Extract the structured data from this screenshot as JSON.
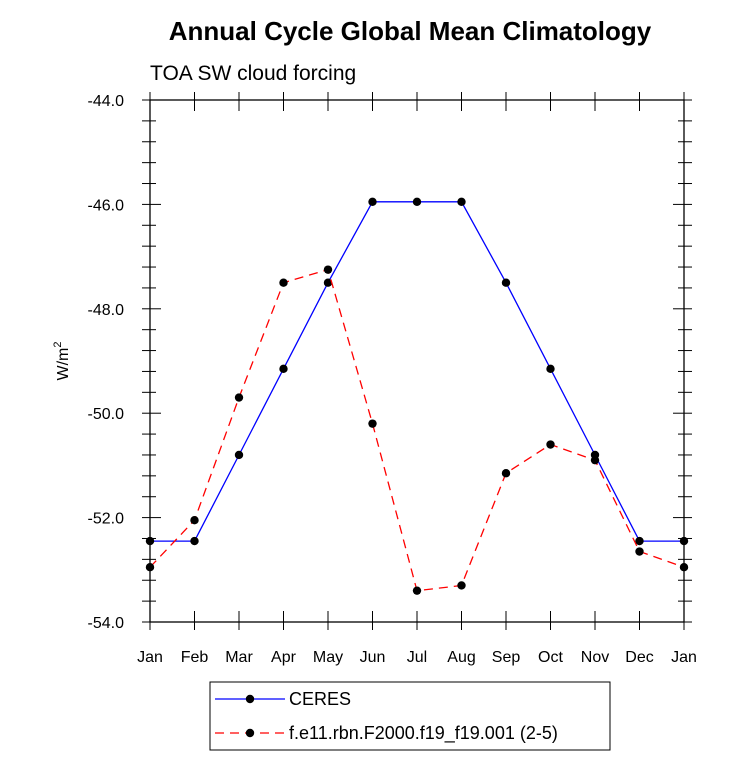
{
  "chart_data": {
    "type": "line",
    "title": "Annual Cycle Global Mean Climatology",
    "subtitle": "TOA SW cloud forcing",
    "xlabel": "",
    "ylabel": "W/m",
    "ylabel_superscript": "2",
    "categories": [
      "Jan",
      "Feb",
      "Mar",
      "Apr",
      "May",
      "Jun",
      "Jul",
      "Aug",
      "Sep",
      "Oct",
      "Nov",
      "Dec",
      "Jan"
    ],
    "ylim": [
      -54.0,
      -44.0
    ],
    "yticks": [
      -54.0,
      -52.0,
      -50.0,
      -48.0,
      -46.0,
      -44.0
    ],
    "ytick_labels": [
      "-54.0",
      "-52.0",
      "-50.0",
      "-48.0",
      "-46.0",
      "-44.0"
    ],
    "yminor_step": 0.4,
    "grid": false,
    "legend_position": "bottom-center",
    "series": [
      {
        "name": "CERES",
        "color": "#0000ff",
        "dash": "solid",
        "marker": "circle",
        "values": [
          -52.45,
          -52.45,
          -50.8,
          -49.15,
          -47.5,
          -45.95,
          -45.95,
          -45.95,
          -47.5,
          -49.15,
          -50.8,
          -52.45,
          -52.45
        ]
      },
      {
        "name": "f.e11.rbn.F2000.f19_f19.001 (2-5)",
        "color": "#ff0000",
        "dash": "dashed",
        "marker": "circle",
        "values": [
          -52.95,
          -52.05,
          -49.7,
          -47.5,
          -47.25,
          -50.2,
          -53.4,
          -53.3,
          -51.15,
          -50.6,
          -50.9,
          -52.65,
          -52.95
        ]
      }
    ]
  }
}
